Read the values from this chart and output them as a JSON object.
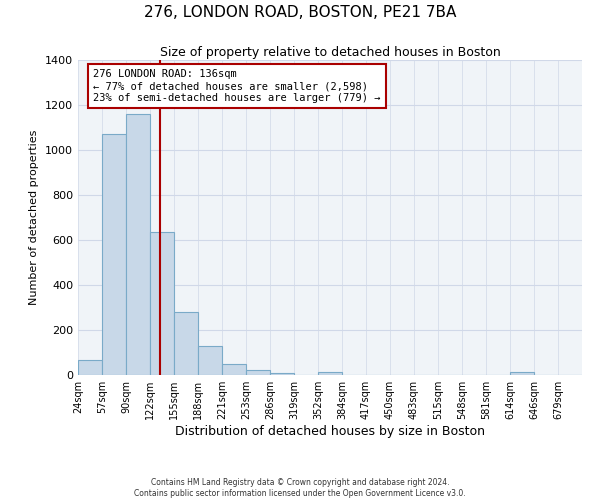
{
  "title": "276, LONDON ROAD, BOSTON, PE21 7BA",
  "subtitle": "Size of property relative to detached houses in Boston",
  "xlabel": "Distribution of detached houses by size in Boston",
  "ylabel": "Number of detached properties",
  "bin_labels": [
    "24sqm",
    "57sqm",
    "90sqm",
    "122sqm",
    "155sqm",
    "188sqm",
    "221sqm",
    "253sqm",
    "286sqm",
    "319sqm",
    "352sqm",
    "384sqm",
    "417sqm",
    "450sqm",
    "483sqm",
    "515sqm",
    "548sqm",
    "581sqm",
    "614sqm",
    "646sqm",
    "679sqm"
  ],
  "bar_heights": [
    65,
    1070,
    1160,
    635,
    280,
    130,
    48,
    22,
    10,
    0,
    15,
    0,
    0,
    0,
    0,
    0,
    0,
    0,
    15,
    0,
    0
  ],
  "bar_color": "#c8d8e8",
  "bar_edgecolor": "#7aaac8",
  "vline_color": "#aa0000",
  "annotation_text": "276 LONDON ROAD: 136sqm\n← 77% of detached houses are smaller (2,598)\n23% of semi-detached houses are larger (779) →",
  "annotation_box_edgecolor": "#aa0000",
  "annotation_box_facecolor": "#ffffff",
  "ylim": [
    0,
    1400
  ],
  "yticks": [
    0,
    200,
    400,
    600,
    800,
    1000,
    1200,
    1400
  ],
  "grid_color": "#d0d8e8",
  "bg_color": "#f0f4f8",
  "footer_line1": "Contains HM Land Registry data © Crown copyright and database right 2024.",
  "footer_line2": "Contains public sector information licensed under the Open Government Licence v3.0."
}
